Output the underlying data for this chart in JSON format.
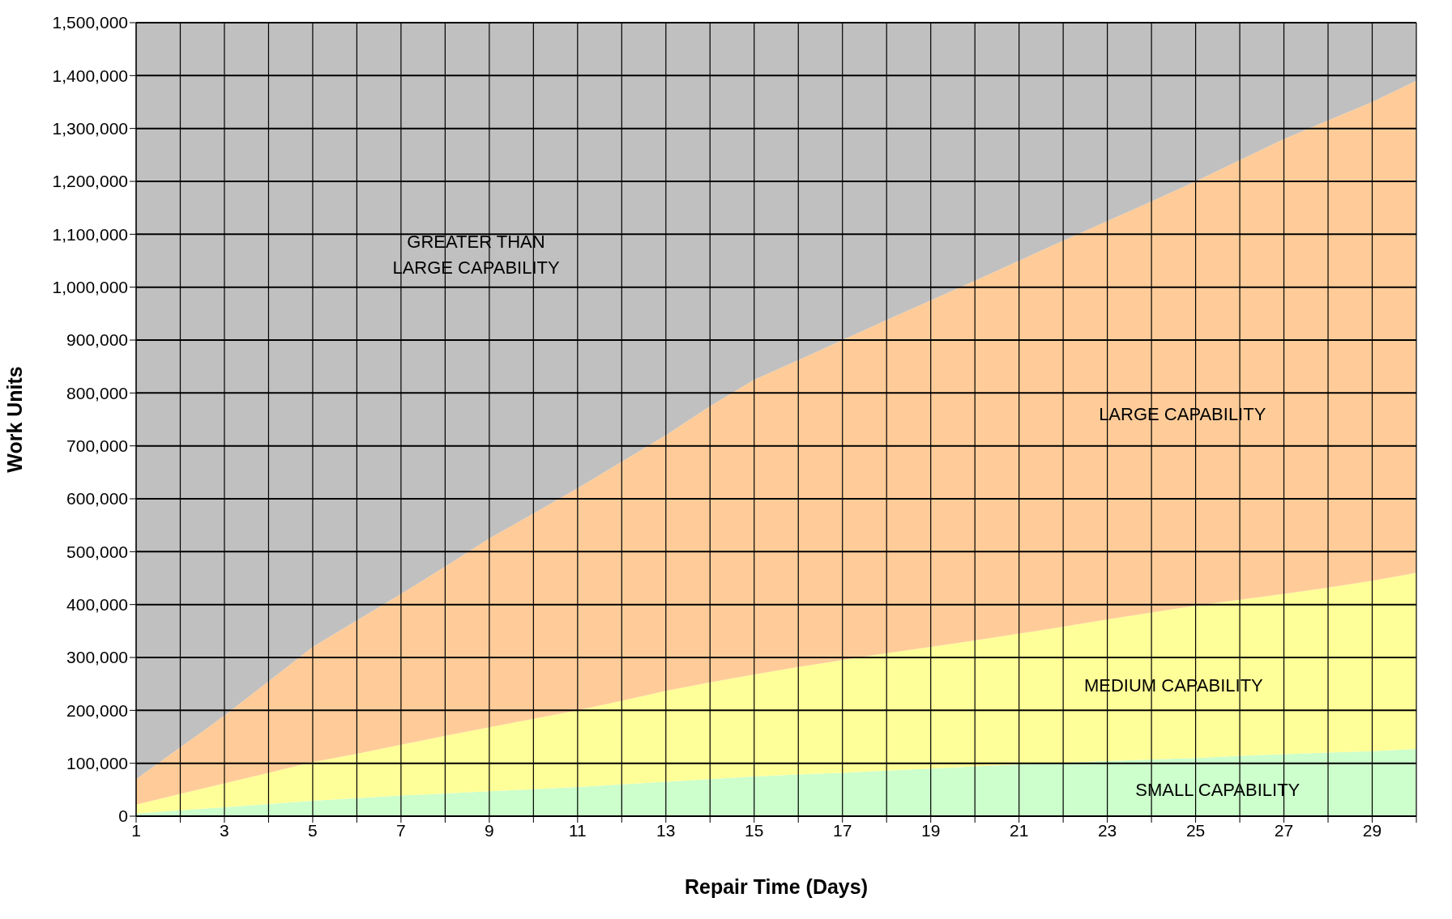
{
  "chart_data": {
    "type": "area",
    "xlabel": "Repair Time (Days)",
    "ylabel": "Work Units",
    "stacked": true,
    "grid": true,
    "x": [
      1,
      2,
      3,
      4,
      5,
      6,
      7,
      8,
      9,
      10,
      11,
      12,
      13,
      14,
      15,
      16,
      17,
      18,
      19,
      20,
      21,
      22,
      23,
      24,
      25,
      26,
      27,
      28,
      29,
      30
    ],
    "xlim": [
      1,
      30
    ],
    "xticks": [
      1,
      {
        "value": 2,
        "label": null
      },
      3,
      {
        "value": 4,
        "label": null
      },
      5,
      {
        "value": 6,
        "label": null
      },
      7,
      {
        "value": 8,
        "label": null
      },
      9,
      {
        "value": 10,
        "label": null
      },
      11,
      {
        "value": 12,
        "label": null
      },
      13,
      {
        "value": 14,
        "label": null
      },
      15,
      {
        "value": 16,
        "label": null
      },
      17,
      {
        "value": 18,
        "label": null
      },
      19,
      {
        "value": 20,
        "label": null
      },
      21,
      {
        "value": 22,
        "label": null
      },
      23,
      {
        "value": 24,
        "label": null
      },
      25,
      {
        "value": 26,
        "label": null
      },
      27,
      {
        "value": 28,
        "label": null
      },
      29,
      {
        "value": 30,
        "label": null
      }
    ],
    "ylim": [
      0,
      1500000
    ],
    "yticks": [
      0,
      {
        "value": 100000,
        "label": "100,000"
      },
      {
        "value": 200000,
        "label": "200,000"
      },
      {
        "value": 300000,
        "label": "300,000"
      },
      {
        "value": 400000,
        "label": "400,000"
      },
      {
        "value": 500000,
        "label": "500,000"
      },
      {
        "value": 600000,
        "label": "600,000"
      },
      {
        "value": 700000,
        "label": "700,000"
      },
      {
        "value": 800000,
        "label": "800,000"
      },
      {
        "value": 900000,
        "label": "900,000"
      },
      {
        "value": 1000000,
        "label": "1,000,000"
      },
      {
        "value": 1100000,
        "label": "1,100,000"
      },
      {
        "value": 1200000,
        "label": "1,200,000"
      },
      {
        "value": 1300000,
        "label": "1,300,000"
      },
      {
        "value": 1400000,
        "label": "1,400,000"
      },
      {
        "value": 1500000,
        "label": "1,500,000"
      }
    ],
    "series": [
      {
        "name": "SMALL CAPABILITY",
        "color": "#ccffcc",
        "values": [
          5000,
          11000,
          17000,
          23000,
          29000,
          34000,
          39000,
          43000,
          47000,
          51000,
          55000,
          60000,
          65000,
          70000,
          75000,
          79000,
          82000,
          86000,
          90000,
          94000,
          98000,
          101000,
          104000,
          107000,
          110000,
          114000,
          117000,
          120000,
          123000,
          127000
        ]
      },
      {
        "name": "MEDIUM CAPABILITY",
        "color": "#ffff99",
        "values": [
          17000,
          31000,
          45000,
          59000,
          73000,
          84000,
          96000,
          109000,
          121000,
          133000,
          145000,
          158000,
          172000,
          183000,
          193000,
          203000,
          213000,
          222000,
          230000,
          238000,
          247000,
          257000,
          268000,
          278000,
          288000,
          295000,
          303000,
          312000,
          322000,
          333000
        ]
      },
      {
        "name": "LARGE CAPABILITY",
        "color": "#ffcc99",
        "values": [
          48000,
          88000,
          128000,
          173000,
          218000,
          252000,
          285000,
          320000,
          357000,
          388000,
          420000,
          452000,
          483000,
          522000,
          557000,
          580000,
          605000,
          630000,
          655000,
          680000,
          705000,
          730000,
          753000,
          777000,
          802000,
          831000,
          860000,
          883000,
          905000,
          930000
        ]
      },
      {
        "name": "GREATER THAN LARGE CAPABILITY",
        "color": "#c0c0c0",
        "values": [
          1430000,
          1370000,
          1310000,
          1245000,
          1180000,
          1130000,
          1080000,
          1028000,
          975000,
          928000,
          880000,
          830000,
          780000,
          725000,
          675000,
          638000,
          600000,
          562000,
          525000,
          488000,
          450000,
          412000,
          375000,
          338000,
          300000,
          260000,
          220000,
          185000,
          150000,
          110000
        ]
      }
    ]
  }
}
